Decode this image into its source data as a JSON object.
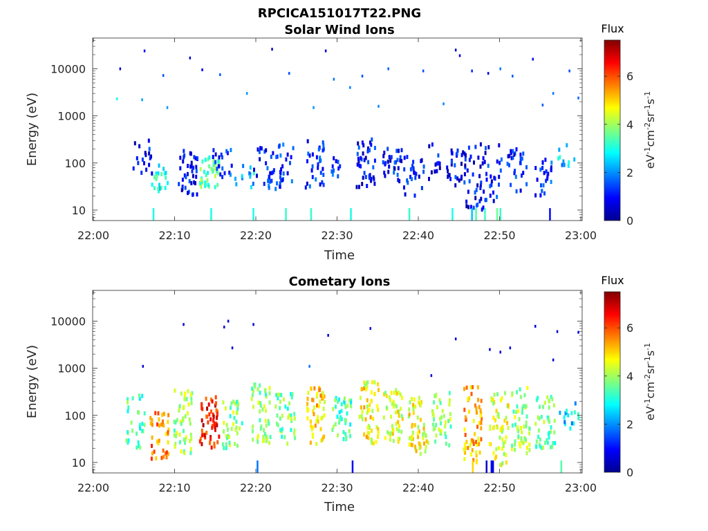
{
  "figure_title": "RPCICA151017T22.PNG",
  "chart_data": [
    {
      "type": "heatmap",
      "title": "Solar Wind Ions",
      "xlabel": "Time",
      "ylabel": "Energy (eV)",
      "x_ticks": [
        "22:00",
        "22:10",
        "22:20",
        "22:30",
        "22:40",
        "22:50",
        "23:00"
      ],
      "x_range": [
        "22:00",
        "23:00"
      ],
      "y_ticks": [
        "10",
        "100",
        "1000",
        "10000"
      ],
      "y_scale": "log",
      "y_range": [
        6,
        45000
      ],
      "colorbar": {
        "title": "Flux",
        "label": "eV-1cm-2sr-1s-1",
        "ticks": [
          "0",
          "2",
          "4",
          "6"
        ],
        "range": [
          0,
          7.5
        ]
      },
      "clusters": [
        {
          "t": 22.1,
          "e_lo": 25,
          "e_hi": 90,
          "v": 1.5,
          "n": 22
        },
        {
          "t": 6.0,
          "e_lo": 40,
          "e_hi": 300,
          "v": 0.8,
          "n": 18
        },
        {
          "t": 8.3,
          "e_lo": 25,
          "e_hi": 90,
          "v": 2.8,
          "n": 20
        },
        {
          "t": 11.5,
          "e_lo": 20,
          "e_hi": 200,
          "v": 0.9,
          "n": 40
        },
        {
          "t": 14.2,
          "e_lo": 30,
          "e_hi": 150,
          "v": 3.5,
          "n": 40
        },
        {
          "t": 15.8,
          "e_lo": 40,
          "e_hi": 200,
          "v": 1.2,
          "n": 20
        },
        {
          "t": 18.5,
          "e_lo": 30,
          "e_hi": 100,
          "v": 2.5,
          "n": 12
        },
        {
          "t": 20.8,
          "e_lo": 40,
          "e_hi": 250,
          "v": 1.0,
          "n": 16
        },
        {
          "t": 23.3,
          "e_lo": 40,
          "e_hi": 250,
          "v": 1.2,
          "n": 16
        },
        {
          "t": 27.2,
          "e_lo": 30,
          "e_hi": 350,
          "v": 1.1,
          "n": 30
        },
        {
          "t": 30.0,
          "e_lo": 50,
          "e_hi": 150,
          "v": 1.5,
          "n": 10
        },
        {
          "t": 33.5,
          "e_lo": 30,
          "e_hi": 350,
          "v": 1.0,
          "n": 40
        },
        {
          "t": 36.7,
          "e_lo": 40,
          "e_hi": 200,
          "v": 1.0,
          "n": 30
        },
        {
          "t": 39.2,
          "e_lo": 20,
          "e_hi": 150,
          "v": 1.1,
          "n": 22
        },
        {
          "t": 41.5,
          "e_lo": 40,
          "e_hi": 300,
          "v": 1.0,
          "n": 16
        },
        {
          "t": 44.5,
          "e_lo": 20,
          "e_hi": 200,
          "v": 0.9,
          "n": 28
        },
        {
          "t": 46.8,
          "e_lo": 10,
          "e_hi": 300,
          "v": 0.9,
          "n": 40
        },
        {
          "t": 49.0,
          "e_lo": 15,
          "e_hi": 250,
          "v": 1.0,
          "n": 26
        },
        {
          "t": 52.0,
          "e_lo": 25,
          "e_hi": 200,
          "v": 1.2,
          "n": 28
        },
        {
          "t": 55.5,
          "e_lo": 20,
          "e_hi": 120,
          "v": 1.2,
          "n": 24
        },
        {
          "t": 58.0,
          "e_lo": 80,
          "e_hi": 250,
          "v": 2.5,
          "n": 10
        }
      ],
      "scattered": [
        {
          "t": 3.2,
          "e": 10000,
          "v": 0.6
        },
        {
          "t": 6.2,
          "e": 24000,
          "v": 1.0
        },
        {
          "t": 8.5,
          "e": 7200,
          "v": 1.5
        },
        {
          "t": 11.8,
          "e": 17000,
          "v": 0.5
        },
        {
          "t": 13.3,
          "e": 9500,
          "v": 0.7
        },
        {
          "t": 15.5,
          "e": 7500,
          "v": 1.6
        },
        {
          "t": 18.8,
          "e": 3000,
          "v": 2.0
        },
        {
          "t": 21.9,
          "e": 26000,
          "v": 0.5
        },
        {
          "t": 24.0,
          "e": 8000,
          "v": 1.5
        },
        {
          "t": 28.5,
          "e": 24000,
          "v": 0.6
        },
        {
          "t": 29.5,
          "e": 6000,
          "v": 1.8
        },
        {
          "t": 31.5,
          "e": 4000,
          "v": 1.9
        },
        {
          "t": 33.0,
          "e": 7000,
          "v": 1.5
        },
        {
          "t": 36.2,
          "e": 10000,
          "v": 1.6
        },
        {
          "t": 40.5,
          "e": 9000,
          "v": 1.5
        },
        {
          "t": 44.5,
          "e": 25000,
          "v": 0.5
        },
        {
          "t": 45.0,
          "e": 19000,
          "v": 0.6
        },
        {
          "t": 46.5,
          "e": 9000,
          "v": 1.2
        },
        {
          "t": 48.5,
          "e": 8000,
          "v": 0.7
        },
        {
          "t": 50.0,
          "e": 10000,
          "v": 1.8
        },
        {
          "t": 51.5,
          "e": 7000,
          "v": 1.6
        },
        {
          "t": 54.0,
          "e": 16000,
          "v": 1.0
        },
        {
          "t": 56.5,
          "e": 3000,
          "v": 1.8
        },
        {
          "t": 58.5,
          "e": 9000,
          "v": 1.5
        },
        {
          "t": 59.6,
          "e": 2400,
          "v": 1.7
        },
        {
          "t": 55.2,
          "e": 1700,
          "v": 1.6
        },
        {
          "t": 43.0,
          "e": 1800,
          "v": 1.9
        },
        {
          "t": 35.0,
          "e": 1600,
          "v": 1.9
        },
        {
          "t": 27.0,
          "e": 1500,
          "v": 2.0
        },
        {
          "t": 9.0,
          "e": 1500,
          "v": 2.0
        },
        {
          "t": 5.9,
          "e": 2200,
          "v": 2.1
        },
        {
          "t": 2.8,
          "e": 2300,
          "v": 2.8
        }
      ],
      "low_streaks": [
        {
          "t": 7.3,
          "v": 3.0
        },
        {
          "t": 14.4,
          "v": 3.0
        },
        {
          "t": 19.6,
          "v": 3.0
        },
        {
          "t": 23.6,
          "v": 3.2
        },
        {
          "t": 26.7,
          "v": 3.2
        },
        {
          "t": 31.6,
          "v": 3.0
        },
        {
          "t": 38.8,
          "v": 3.2
        },
        {
          "t": 44.1,
          "v": 3.0
        },
        {
          "t": 46.5,
          "v": 2.4
        },
        {
          "t": 47.0,
          "v": 3.4
        },
        {
          "t": 48.1,
          "v": 3.3
        },
        {
          "t": 49.6,
          "v": 3.6
        },
        {
          "t": 50.0,
          "v": 3.2
        },
        {
          "t": 56.1,
          "v": 1.0
        }
      ]
    },
    {
      "type": "heatmap",
      "title": "Cometary Ions",
      "xlabel": "Time",
      "ylabel": "Energy (eV)",
      "x_ticks": [
        "22:00",
        "22:10",
        "22:20",
        "22:30",
        "22:40",
        "22:50",
        "23:00"
      ],
      "x_range": [
        "22:00",
        "23:00"
      ],
      "y_ticks": [
        "10",
        "100",
        "1000",
        "10000"
      ],
      "y_scale": "log",
      "y_range": [
        6,
        45000
      ],
      "colorbar": {
        "title": "Flux",
        "label": "eV-1cm-2sr-1s-1",
        "ticks": [
          "0",
          "2",
          "4",
          "6"
        ],
        "range": [
          0,
          7.5
        ]
      },
      "clusters": [
        {
          "t": 5.0,
          "e_lo": 20,
          "e_hi": 300,
          "v": 3.4,
          "n": 30
        },
        {
          "t": 8.0,
          "e_lo": 12,
          "e_hi": 120,
          "v": 5.6,
          "n": 40
        },
        {
          "t": 11.0,
          "e_lo": 15,
          "e_hi": 350,
          "v": 4.0,
          "n": 50
        },
        {
          "t": 14.2,
          "e_lo": 20,
          "e_hi": 250,
          "v": 6.4,
          "n": 55
        },
        {
          "t": 17.0,
          "e_lo": 20,
          "e_hi": 200,
          "v": 3.8,
          "n": 40
        },
        {
          "t": 20.5,
          "e_lo": 25,
          "e_hi": 500,
          "v": 3.8,
          "n": 50
        },
        {
          "t": 23.5,
          "e_lo": 25,
          "e_hi": 300,
          "v": 3.6,
          "n": 40
        },
        {
          "t": 27.2,
          "e_lo": 20,
          "e_hi": 400,
          "v": 5.0,
          "n": 55
        },
        {
          "t": 30.5,
          "e_lo": 30,
          "e_hi": 250,
          "v": 3.4,
          "n": 40
        },
        {
          "t": 33.8,
          "e_lo": 25,
          "e_hi": 550,
          "v": 4.7,
          "n": 55
        },
        {
          "t": 36.8,
          "e_lo": 25,
          "e_hi": 350,
          "v": 4.4,
          "n": 50
        },
        {
          "t": 39.9,
          "e_lo": 15,
          "e_hi": 250,
          "v": 4.6,
          "n": 55
        },
        {
          "t": 42.8,
          "e_lo": 20,
          "e_hi": 300,
          "v": 3.8,
          "n": 40
        },
        {
          "t": 46.5,
          "e_lo": 10,
          "e_hi": 400,
          "v": 5.2,
          "n": 60
        },
        {
          "t": 49.8,
          "e_lo": 8,
          "e_hi": 300,
          "v": 4.4,
          "n": 55
        },
        {
          "t": 52.5,
          "e_lo": 15,
          "e_hi": 450,
          "v": 4.0,
          "n": 55
        },
        {
          "t": 55.5,
          "e_lo": 20,
          "e_hi": 250,
          "v": 3.6,
          "n": 45
        },
        {
          "t": 58.5,
          "e_lo": 40,
          "e_hi": 200,
          "v": 2.6,
          "n": 16
        }
      ],
      "scattered": [
        {
          "t": 11.0,
          "e": 8500,
          "v": 0.6
        },
        {
          "t": 16.0,
          "e": 7500,
          "v": 0.6
        },
        {
          "t": 16.5,
          "e": 10000,
          "v": 0.6
        },
        {
          "t": 19.6,
          "e": 8500,
          "v": 0.6
        },
        {
          "t": 28.8,
          "e": 5000,
          "v": 0.6
        },
        {
          "t": 34.0,
          "e": 7000,
          "v": 0.6
        },
        {
          "t": 44.5,
          "e": 4200,
          "v": 0.6
        },
        {
          "t": 48.7,
          "e": 2500,
          "v": 0.6
        },
        {
          "t": 50.0,
          "e": 2200,
          "v": 0.6
        },
        {
          "t": 51.2,
          "e": 2700,
          "v": 0.6
        },
        {
          "t": 54.3,
          "e": 7800,
          "v": 0.6
        },
        {
          "t": 57.0,
          "e": 6000,
          "v": 0.6
        },
        {
          "t": 59.6,
          "e": 5800,
          "v": 0.6
        },
        {
          "t": 56.5,
          "e": 1500,
          "v": 0.6
        },
        {
          "t": 17.0,
          "e": 2700,
          "v": 0.6
        },
        {
          "t": 6.0,
          "e": 1100,
          "v": 0.6
        },
        {
          "t": 26.5,
          "e": 1100,
          "v": 1.8
        },
        {
          "t": 41.5,
          "e": 700,
          "v": 0.6
        }
      ],
      "low_streaks": [
        {
          "t": 31.8,
          "v": 0.9
        },
        {
          "t": 20.1,
          "v": 1.8
        },
        {
          "t": 48.3,
          "v": 0.5
        },
        {
          "t": 49.1,
          "v": 0.7
        },
        {
          "t": 48.9,
          "v": 0.9
        },
        {
          "t": 57.5,
          "v": 3.4
        },
        {
          "t": 46.6,
          "v": 5.0
        }
      ]
    }
  ]
}
